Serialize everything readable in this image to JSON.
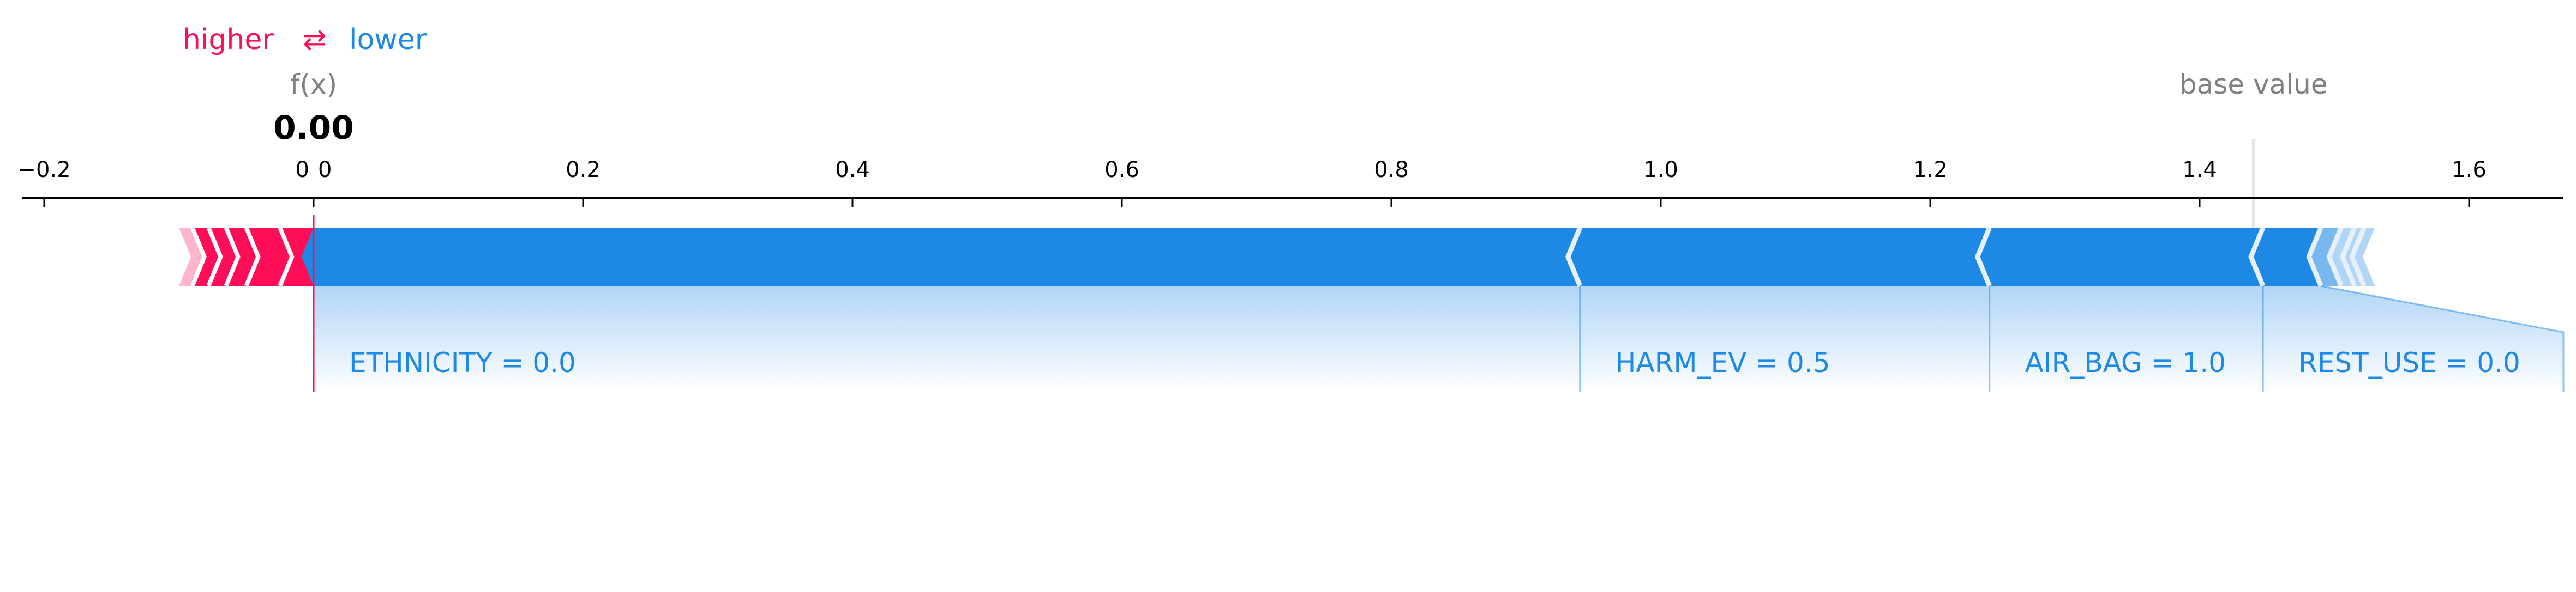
{
  "legend": {
    "higher": "higher",
    "arrow": "⇄",
    "lower": "lower",
    "higher_color": "#ff0d57",
    "lower_color": "#1e88e5"
  },
  "labels": {
    "fx": "f(x)",
    "fx_value": "0.00",
    "base_value": "base value"
  },
  "chart_data": {
    "type": "force",
    "xlim": [
      -0.22,
      1.67
    ],
    "ticks": [
      {
        "value": -0.2,
        "label": "−0.2"
      },
      {
        "value": 0.0,
        "label": "0"
      },
      {
        "value": 0.2,
        "label": "0.2"
      },
      {
        "value": 0.4,
        "label": "0.4"
      },
      {
        "value": 0.6,
        "label": "0.6"
      },
      {
        "value": 0.8,
        "label": "0.8"
      },
      {
        "value": 1.0,
        "label": "1.0"
      },
      {
        "value": 1.2,
        "label": "1.2"
      },
      {
        "value": 1.4,
        "label": "1.4"
      },
      {
        "value": 1.6,
        "label": "1.6"
      }
    ],
    "output_value": 0.0,
    "output_tick_label": "0",
    "base_value": 1.44,
    "positive_features": [
      {
        "start": -0.025,
        "end": 0.0
      },
      {
        "start": -0.05,
        "end": -0.025
      },
      {
        "start": -0.065,
        "end": -0.05
      },
      {
        "start": -0.078,
        "end": -0.065
      },
      {
        "start": -0.09,
        "end": -0.078
      },
      {
        "start": -0.1,
        "end": -0.09
      }
    ],
    "negative_features": [
      {
        "name": "ETHNICITY  = 0.0",
        "start": 0.0,
        "end": 0.94
      },
      {
        "name": "HARM_EV = 0.5",
        "start": 0.94,
        "end": 1.244
      },
      {
        "name": "AIR_BAG = 1.0",
        "start": 1.244,
        "end": 1.447
      },
      {
        "name": "REST_USE = 0.0",
        "start": 1.447,
        "end": 1.49
      },
      {
        "name": "",
        "start": 1.49,
        "end": 1.505
      },
      {
        "name": "",
        "start": 1.505,
        "end": 1.515
      },
      {
        "name": "",
        "start": 1.515,
        "end": 1.522
      },
      {
        "name": "",
        "start": 1.522,
        "end": 1.53
      }
    ]
  }
}
